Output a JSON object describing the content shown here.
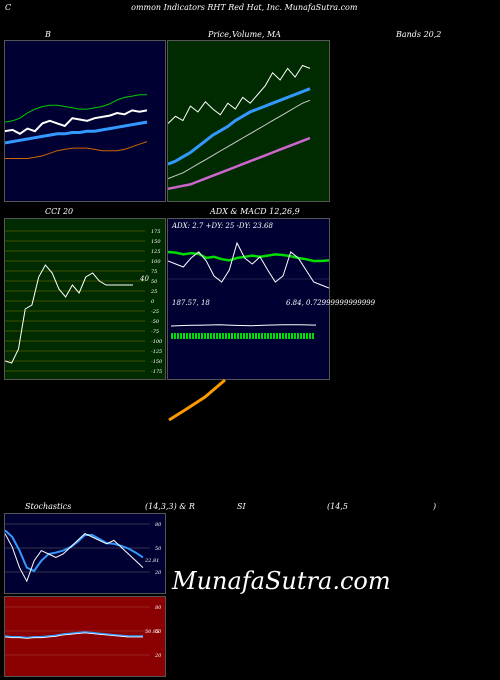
{
  "header": {
    "title_left": "C",
    "title_main": "ommon Indicators RHT Red Hat, Inc. MunafaSutra.com"
  },
  "labels": {
    "bb": "B",
    "price_vol": "Price,",
    "volume_ma": "Volume, MA",
    "bands": "Bands 20,2",
    "cci": "CCI 20",
    "adx": "ADX  & MACD 12,26,9",
    "stoch": "Stochastics",
    "stoch_params": "(14,3,3) & R",
    "rsi": "SI",
    "rsi_params": "(14,5",
    "rsi_close": ")"
  },
  "cci_panel": {
    "last_value": "40",
    "ticks": [
      "175",
      "150",
      "125",
      "100",
      "75",
      "50",
      "25",
      "0",
      "-25",
      "-50",
      "-75",
      "-100",
      "-125",
      "-150",
      "-175"
    ]
  },
  "adx_panel": {
    "readout": "ADX: 2.7  +DY: 25  -DY: 23.68",
    "macd_readout_a": "187.57,  18",
    "macd_readout_b": "6.84,  0.72999999999999"
  },
  "stoch_panel": {
    "ticks": [
      "80",
      "50",
      "20"
    ],
    "last_value": "22.81"
  },
  "rsi_panel": {
    "ticks": [
      "80",
      "50",
      "20"
    ],
    "last_value": "50.95"
  },
  "watermark": "MunafaSutra.com",
  "colors": {
    "bb_bg": "#000033",
    "vol_bg": "#002b00",
    "cci_bg": "#002b00",
    "macd_bg": "#000033",
    "stoch_bg": "#000033",
    "rsi_bg": "#8b0000",
    "price_line": "#ffffff",
    "ma_blue": "#3399ff",
    "upper_band": "#00cc00",
    "lower_band": "#cc6600",
    "adx_green": "#00dd00",
    "macd_orange": "#ff9900"
  },
  "chart_data": [
    {
      "type": "line",
      "name": "bollinger",
      "series": [
        {
          "values": [
            46,
            47,
            44,
            48,
            46,
            52,
            54,
            52,
            50,
            56,
            55,
            54,
            56,
            57,
            58,
            60,
            59,
            62,
            61,
            62
          ]
        },
        {
          "values": [
            37,
            38,
            39,
            40,
            41,
            42,
            43,
            44,
            44,
            45,
            45,
            46,
            46,
            47,
            48,
            49,
            50,
            51,
            52,
            53
          ]
        },
        {
          "values": [
            53,
            54,
            56,
            60,
            63,
            65,
            66,
            66,
            65,
            64,
            63,
            63,
            64,
            65,
            67,
            70,
            72,
            73,
            74,
            74
          ]
        },
        {
          "values": [
            25,
            25,
            25,
            25,
            26,
            27,
            29,
            31,
            32,
            33,
            33,
            33,
            32,
            31,
            31,
            31,
            32,
            34,
            36,
            38
          ]
        }
      ]
    },
    {
      "type": "line",
      "name": "price_volume_ma",
      "series": [
        {
          "values": [
            50,
            55,
            52,
            62,
            58,
            65,
            60,
            56,
            64,
            60,
            68,
            64,
            70,
            76,
            85,
            80,
            88,
            82,
            90,
            88
          ]
        },
        {
          "values": [
            22,
            24,
            27,
            30,
            34,
            38,
            42,
            45,
            48,
            52,
            55,
            58,
            60,
            62,
            64,
            66,
            68,
            70,
            72,
            74
          ]
        },
        {
          "values": [
            12,
            14,
            16,
            19,
            22,
            25,
            28,
            31,
            34,
            37,
            40,
            43,
            46,
            49,
            52,
            55,
            58,
            61,
            64,
            66
          ]
        },
        {
          "values": [
            5,
            6,
            7,
            8,
            10,
            12,
            14,
            16,
            18,
            20,
            22,
            24,
            26,
            28,
            30,
            32,
            34,
            36,
            38,
            40
          ]
        }
      ]
    },
    {
      "type": "line",
      "name": "cci",
      "values": [
        -150,
        -155,
        -120,
        -20,
        -10,
        60,
        90,
        70,
        30,
        10,
        40,
        20,
        60,
        70,
        50,
        40,
        40,
        40,
        40,
        40
      ]
    },
    {
      "type": "line",
      "name": "adx_macd",
      "series": [
        {
          "values": [
            70,
            69,
            66,
            68,
            67,
            60,
            62,
            58,
            56,
            60,
            62,
            64,
            62,
            64,
            66,
            65,
            63,
            60,
            58,
            55,
            55,
            56
          ]
        },
        {
          "values": [
            55,
            50,
            45,
            60,
            70,
            55,
            30,
            20,
            40,
            85,
            60,
            50,
            62,
            40,
            20,
            30,
            70,
            60,
            40,
            20,
            15,
            10
          ]
        }
      ]
    },
    {
      "type": "line",
      "name": "stochastics",
      "series": [
        {
          "values": [
            80,
            60,
            30,
            10,
            40,
            55,
            50,
            45,
            50,
            60,
            70,
            80,
            75,
            70,
            65,
            70,
            60,
            50,
            40,
            30
          ]
        },
        {
          "values": [
            85,
            75,
            55,
            30,
            25,
            40,
            50,
            52,
            55,
            60,
            68,
            78,
            78,
            72,
            66,
            65,
            62,
            58,
            52,
            45
          ]
        }
      ]
    },
    {
      "type": "line",
      "name": "rsi",
      "series": [
        {
          "values": [
            51,
            50,
            50,
            49,
            50,
            50,
            51,
            52,
            54,
            55,
            56,
            57,
            56,
            55,
            54,
            53,
            52,
            51,
            51,
            51
          ]
        }
      ]
    }
  ]
}
